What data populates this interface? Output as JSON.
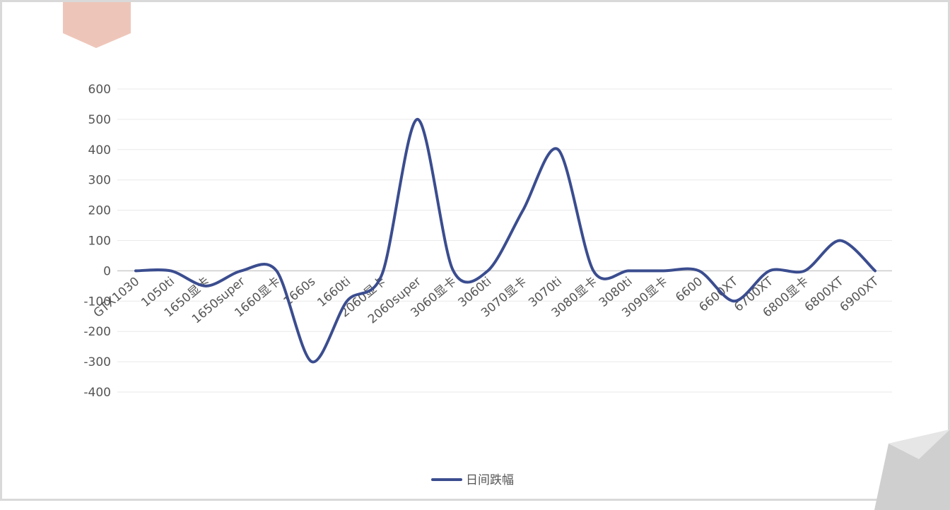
{
  "chart_data": {
    "type": "line",
    "categories": [
      "GTX1030",
      "1050ti",
      "1650显卡",
      "1650super",
      "1660显卡",
      "1660s",
      "1660ti",
      "2060显卡",
      "2060super",
      "3060显卡",
      "3060ti",
      "3070显卡",
      "3070ti",
      "3080显卡",
      "3080ti",
      "3090显卡",
      "6600",
      "6600XT",
      "6700XT",
      "6800显卡",
      "6800XT",
      "6900XT"
    ],
    "series": [
      {
        "name": "日间跌幅",
        "values": [
          0,
          0,
          -50,
          0,
          0,
          -300,
          -100,
          -10,
          500,
          5,
          0,
          200,
          400,
          0,
          0,
          0,
          0,
          -100,
          0,
          0,
          100,
          0
        ]
      }
    ],
    "ylim": [
      -400,
      600
    ],
    "yticks": [
      "600",
      "500",
      "400",
      "300",
      "200",
      "100",
      "0",
      "-100",
      "-200",
      "-300",
      "-400"
    ],
    "grid": true,
    "legend_position": "bottom-center",
    "colors": {
      "line": "#3B4D8F",
      "grid": "#E9E9E9",
      "axis": "#CCCCCC",
      "tab": "#EEC6B9"
    }
  }
}
